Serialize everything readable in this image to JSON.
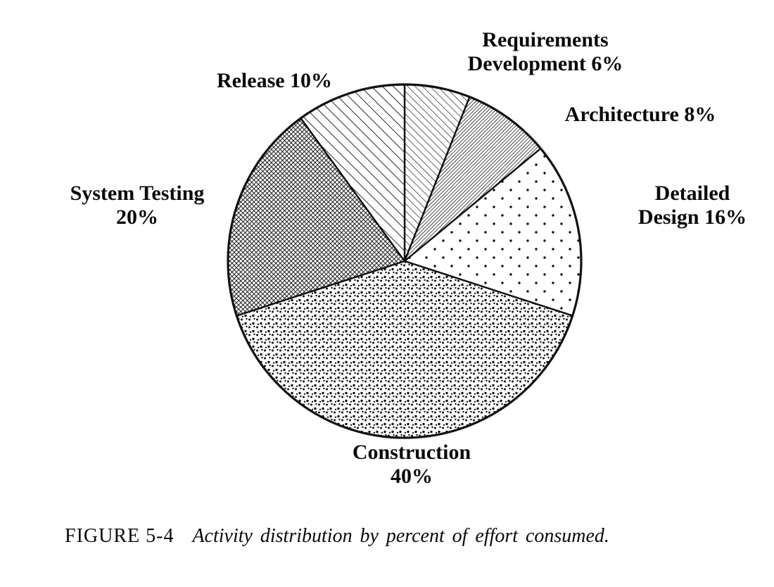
{
  "chart_data": {
    "type": "pie",
    "title": "",
    "categories": [
      "Requirements Development",
      "Architecture",
      "Detailed Design",
      "Construction",
      "System Testing",
      "Release"
    ],
    "values": [
      6,
      8,
      16,
      40,
      20,
      10
    ],
    "unit": "%",
    "start_angle_deg": -90,
    "direction": "clockwise",
    "legend": "none",
    "patterns": [
      "diagonal-hatch-fine",
      "diagonal-hatch-dense",
      "dots-sparse",
      "dots-speckled",
      "crosshatch-dark",
      "diagonal-lines-wide"
    ],
    "colors": {
      "ink": "#111111",
      "background": "#ffffff"
    }
  },
  "labels": {
    "requirements": {
      "line1": "Requirements",
      "line2": "Development 6%"
    },
    "architecture": {
      "line1": "Architecture 8%"
    },
    "detailed_design": {
      "line1": "Detailed",
      "line2": "Design 16%"
    },
    "construction": {
      "line1": "Construction",
      "line2": "40%"
    },
    "system_testing": {
      "line1": "System Testing",
      "line2": "20%"
    },
    "release": {
      "line1": "Release 10%"
    }
  },
  "caption": {
    "figure_label": "FIGURE 5-4",
    "text": "Activity distribution by percent of effort consumed."
  }
}
